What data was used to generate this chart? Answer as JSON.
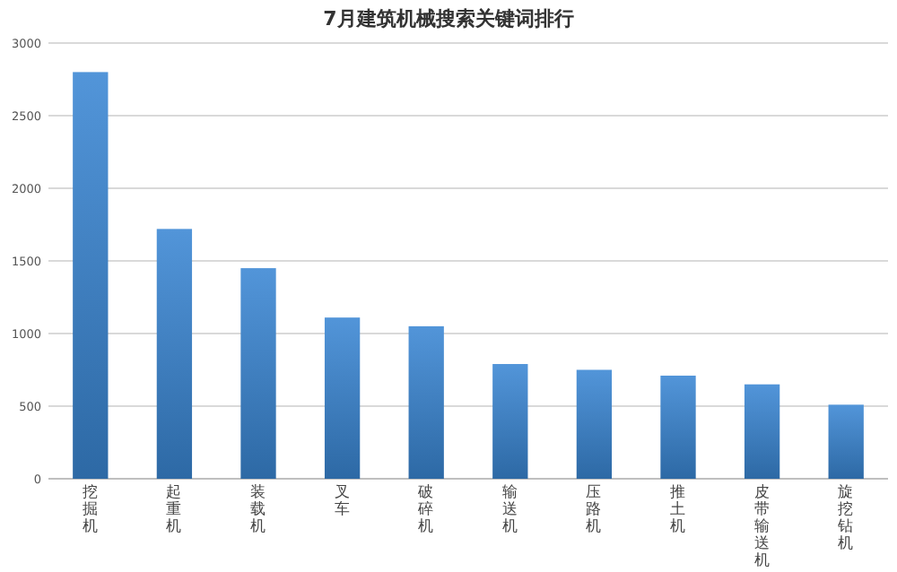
{
  "chart_data": {
    "type": "bar",
    "title": "7月建筑机械搜索关键词排行",
    "categories": [
      "挖掘机",
      "起重机",
      "装载机",
      "叉车",
      "破碎机",
      "输送机",
      "压路机",
      "推土机",
      "皮带输送机",
      "旋挖钻机"
    ],
    "values": [
      2800,
      1720,
      1450,
      1110,
      1050,
      790,
      750,
      710,
      650,
      510
    ],
    "color": "#3a86d4",
    "ylim": [
      0,
      3000
    ],
    "yticks": [
      0,
      500,
      1000,
      1500,
      2000,
      2500,
      3000
    ],
    "grid": "y"
  }
}
